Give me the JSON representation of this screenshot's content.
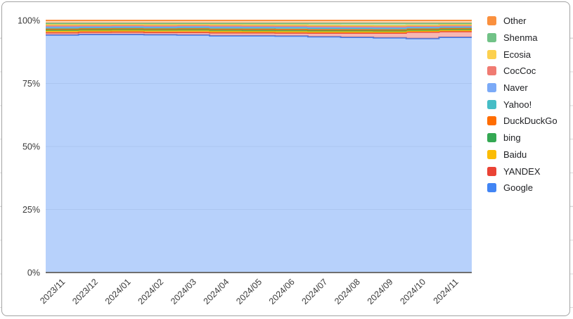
{
  "chart_data": {
    "type": "area",
    "variant": "stepped-stacked-percent",
    "title": "",
    "xlabel": "",
    "ylabel": "",
    "ylim": [
      0,
      100
    ],
    "grid": true,
    "legend_position": "right",
    "area_opacity": 0.38,
    "line_width": 2,
    "grid_color": "#ececec",
    "axis_line_color": "#6f6f6f",
    "axis_text_color": "#3a3a3a",
    "x_labels": [
      "2023/11",
      "2023/12",
      "2024/01",
      "2024/02",
      "2024/03",
      "2024/04",
      "2024/05",
      "2024/06",
      "2024/07",
      "2024/08",
      "2024/09",
      "2024/10",
      "2024/11"
    ],
    "y_tick_labels": [
      "0%",
      "25%",
      "50%",
      "75%",
      "100%"
    ],
    "y_tick_values": [
      0,
      25,
      50,
      75,
      100
    ],
    "series": [
      {
        "name": "Google",
        "color": "#4285F4",
        "values": [
          94.2,
          94.4,
          94.4,
          94.3,
          94.2,
          93.9,
          93.9,
          93.8,
          93.5,
          93.3,
          93.1,
          92.8,
          93.3
        ]
      },
      {
        "name": "YANDEX",
        "color": "#EA4335",
        "values": [
          0.95,
          0.95,
          1.0,
          1.0,
          1.1,
          1.2,
          1.2,
          1.25,
          1.5,
          1.7,
          1.9,
          2.6,
          2.3
        ]
      },
      {
        "name": "Baidu",
        "color": "#FBBC04",
        "values": [
          0.65,
          0.6,
          0.6,
          0.6,
          0.6,
          0.6,
          0.55,
          0.55,
          0.5,
          0.5,
          0.5,
          0.45,
          0.45
        ]
      },
      {
        "name": "bing",
        "color": "#34A853",
        "values": [
          0.5,
          0.5,
          0.5,
          0.5,
          0.55,
          0.55,
          0.55,
          0.55,
          0.55,
          0.55,
          0.5,
          0.5,
          0.5
        ]
      },
      {
        "name": "DuckDuckGo",
        "color": "#FF6D01",
        "values": [
          0.3,
          0.3,
          0.3,
          0.3,
          0.3,
          0.3,
          0.3,
          0.3,
          0.3,
          0.3,
          0.3,
          0.3,
          0.3
        ]
      },
      {
        "name": "Yahoo!",
        "color": "#46BDC6",
        "values": [
          0.45,
          0.45,
          0.45,
          0.45,
          0.5,
          0.55,
          0.6,
          0.6,
          0.55,
          0.5,
          0.5,
          0.45,
          0.45
        ]
      },
      {
        "name": "Naver",
        "color": "#7BAAF7",
        "values": [
          0.4,
          0.35,
          0.35,
          0.35,
          0.35,
          0.35,
          0.35,
          0.35,
          0.35,
          0.35,
          0.35,
          0.3,
          0.3
        ]
      },
      {
        "name": "CocCoc",
        "color": "#F07B72",
        "values": [
          0.45,
          0.4,
          0.4,
          0.4,
          0.4,
          0.45,
          0.4,
          0.4,
          0.4,
          0.4,
          0.4,
          0.35,
          0.35
        ]
      },
      {
        "name": "Ecosia",
        "color": "#FCD04F",
        "values": [
          0.45,
          0.45,
          0.45,
          0.45,
          0.45,
          0.45,
          0.45,
          0.45,
          0.45,
          0.45,
          0.45,
          0.4,
          0.4
        ]
      },
      {
        "name": "Shenma",
        "color": "#71C287",
        "values": [
          0.55,
          0.5,
          0.45,
          0.55,
          0.45,
          0.55,
          0.6,
          0.65,
          0.8,
          0.85,
          0.9,
          0.75,
          0.55
        ]
      },
      {
        "name": "Other",
        "color": "#FA903E",
        "values": [
          1.1,
          1.1,
          1.1,
          1.1,
          1.1,
          1.1,
          1.1,
          1.1,
          1.1,
          1.1,
          1.1,
          1.1,
          1.1
        ]
      }
    ],
    "legend_order": "reverse-of-series"
  }
}
